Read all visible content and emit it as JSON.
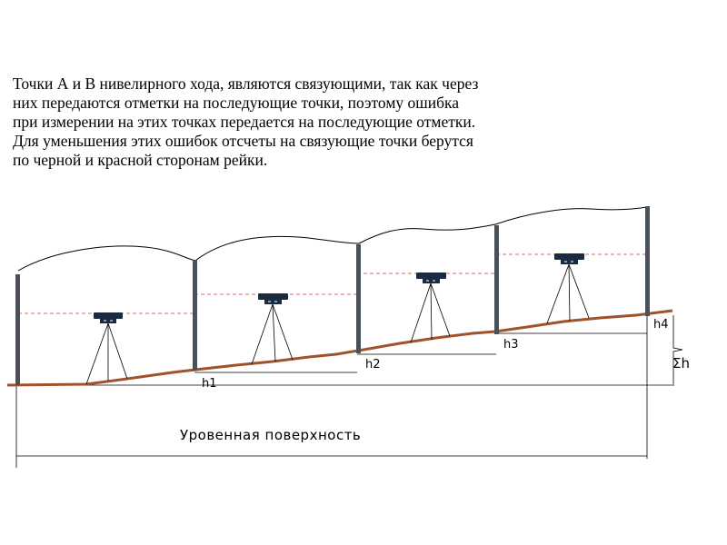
{
  "text": {
    "lines": [
      "Точки А и В нивелирного хода, являются связующими, так как через",
      " них передаются отметки на последующие точки, поэтому ошибка",
      " при измерении на этих точках передается на последующие отметки.",
      " Для уменьшения этих ошибок отсчеты на связующие точки берутся",
      " по черной и красной сторонам рейки."
    ]
  },
  "diagram": {
    "height_labels": [
      "h1",
      "h2",
      "h3",
      "h4"
    ],
    "sum_label": "Σh",
    "surface_label": "Уровенная  поверхность",
    "colors": {
      "ground": "#a0522d",
      "sight_line": "#e06666",
      "staff": "#4a5058",
      "instrument": "#1a2a40",
      "line": "#000000"
    }
  }
}
